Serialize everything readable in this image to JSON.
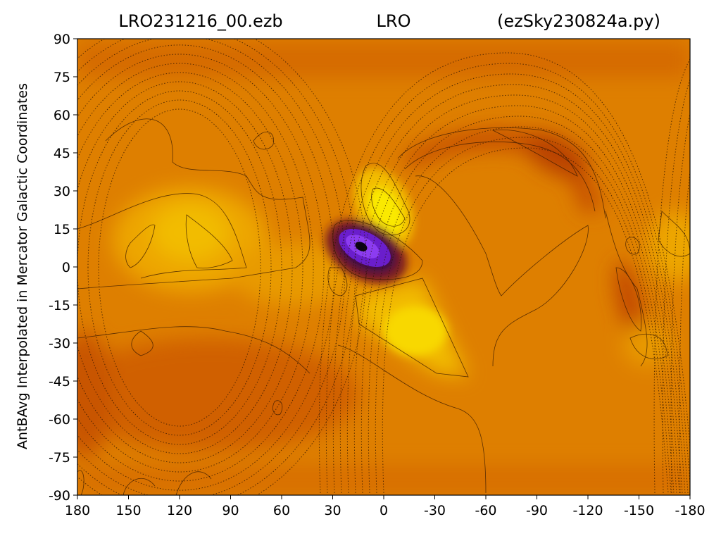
{
  "chart_data": {
    "type": "heatmap",
    "title_parts": {
      "left": "LRO231216_00.ezb",
      "center": "LRO",
      "right": "(ezSky230824a.py)"
    },
    "xlabel": "",
    "ylabel": "AntBAvg Interpolated in Mercator Galactic Coordinates",
    "x_ticks": [
      "180",
      "150",
      "120",
      "90",
      "60",
      "30",
      "0",
      "-30",
      "-60",
      "-90",
      "-120",
      "-150",
      "-180"
    ],
    "x_tick_values": [
      180,
      150,
      120,
      90,
      60,
      30,
      0,
      -30,
      -60,
      -90,
      -120,
      -150,
      -180
    ],
    "y_ticks": [
      "90",
      "75",
      "60",
      "45",
      "30",
      "15",
      "0",
      "-15",
      "-30",
      "-45",
      "-60",
      "-75",
      "-90"
    ],
    "y_tick_values": [
      90,
      75,
      60,
      45,
      30,
      15,
      0,
      -15,
      -30,
      -45,
      -60,
      -75,
      -90
    ],
    "xlim": [
      180,
      -180
    ],
    "ylim": [
      -90,
      90
    ],
    "colormap_colors": [
      "#c54600",
      "#d06100",
      "#de7f00",
      "#e89a00",
      "#f2bc00",
      "#f8d800",
      "#fae900",
      "#7a1c24",
      "#3a0f48",
      "#6a1ecc",
      "#8c3cf0"
    ],
    "features": [
      {
        "label": "strong source",
        "x": 11,
        "y": 7,
        "level": "minimum"
      },
      {
        "label": "bright lobe",
        "x": -2,
        "y": 24,
        "level": "high"
      },
      {
        "label": "bright region",
        "x": -32,
        "y": -20,
        "level": "high"
      },
      {
        "label": "left lobe",
        "x": 118,
        "y": 10,
        "level": "high"
      },
      {
        "label": "dark arc",
        "x": -95,
        "y": 46,
        "level": "low"
      },
      {
        "label": "dark streak",
        "x": -145,
        "y": -10,
        "level": "low"
      }
    ]
  }
}
